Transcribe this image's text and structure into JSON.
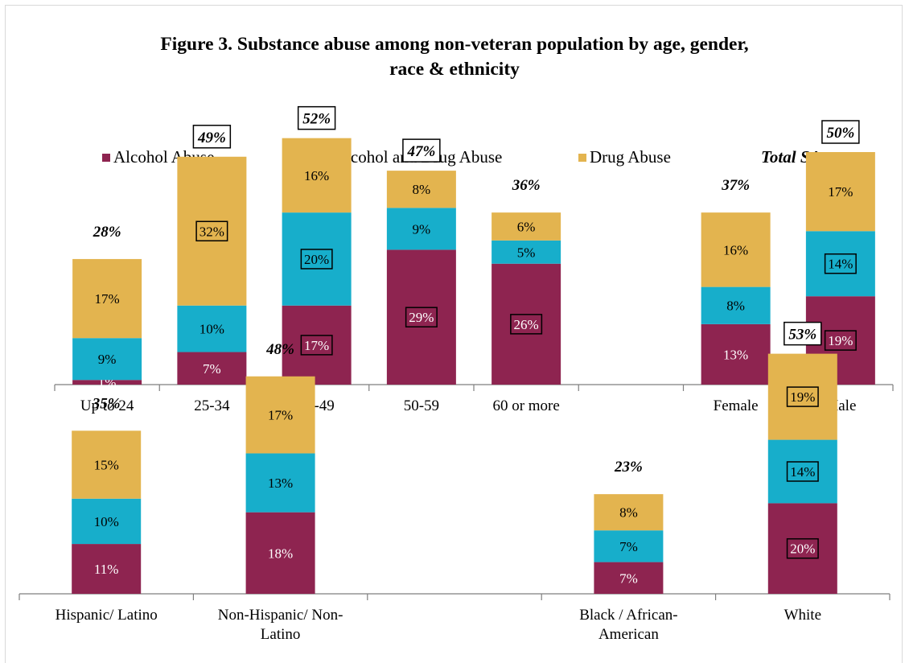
{
  "chart_title": "Figure 3. Substance abuse among non-veteran population by age, gender, race & ethnicity",
  "title_lines": [
    "Figure 3. Substance abuse among non-veteran population by age, gender,",
    "race & ethnicity"
  ],
  "legend": {
    "items": [
      {
        "label": "Alcohol Abuse",
        "color": "#8e2450"
      },
      {
        "label": "Both Alcohol and Drug Abuse",
        "color": "#17aecb"
      },
      {
        "label": "Drug Abuse",
        "color": "#e3b44f"
      }
    ],
    "total_label": "Total SA"
  },
  "colors": {
    "alcohol": "#8e2450",
    "both": "#17aecb",
    "drug": "#e3b44f",
    "axis": "#7f7f7f"
  },
  "chart_data": [
    {
      "type": "bar",
      "stacked": true,
      "title": "Figure 3. Substance abuse among non-veteran population by age, gender, race & ethnicity",
      "categories": [
        "Up to 24",
        "25-34",
        "35-49",
        "50-59",
        "60 or more",
        "",
        "Female",
        "Male"
      ],
      "series": [
        {
          "name": "Alcohol Abuse",
          "values": [
            1,
            7,
            17,
            29,
            26,
            null,
            13,
            19
          ],
          "labels": [
            "1%",
            "7%",
            "17%",
            "29%",
            "26%",
            "",
            "13%",
            "19%"
          ]
        },
        {
          "name": "Both Alcohol and Drug Abuse",
          "values": [
            9,
            10,
            20,
            9,
            5,
            null,
            8,
            14
          ],
          "labels": [
            "9%",
            "10%",
            "20%",
            "9%",
            "5%",
            "",
            "8%",
            "14%"
          ]
        },
        {
          "name": "Drug Abuse",
          "values": [
            17,
            32,
            16,
            8,
            6,
            null,
            16,
            17
          ],
          "labels": [
            "17%",
            "32%",
            "16%",
            "8%",
            "6%",
            "",
            "16%",
            "17%"
          ]
        }
      ],
      "totals": [
        28,
        49,
        52,
        47,
        36,
        null,
        37,
        50
      ],
      "total_labels": [
        "28%",
        "49%",
        "52%",
        "47%",
        "36%",
        "",
        "37%",
        "50%"
      ],
      "total_boxed": [
        false,
        true,
        true,
        true,
        false,
        false,
        false,
        true
      ],
      "boxed": {
        "Alcohol Abuse": [
          false,
          false,
          true,
          true,
          true,
          false,
          false,
          true
        ],
        "Both Alcohol and Drug Abuse": [
          false,
          false,
          true,
          false,
          false,
          false,
          false,
          true
        ],
        "Drug Abuse": [
          false,
          true,
          false,
          false,
          false,
          false,
          false,
          false
        ]
      },
      "ylim": [
        0,
        60
      ],
      "grid": false,
      "legend_position": "top"
    },
    {
      "type": "bar",
      "stacked": true,
      "categories": [
        "Hispanic/ Latino",
        "Non-Hispanic/ Non-Latino",
        "",
        "Black / African-American",
        "White"
      ],
      "category_lines": [
        [
          "Hispanic/ Latino"
        ],
        [
          "Non-Hispanic/ Non-",
          "Latino"
        ],
        [],
        [
          "Black / African-",
          "American"
        ],
        [
          "White"
        ]
      ],
      "series": [
        {
          "name": "Alcohol Abuse",
          "values": [
            11,
            18,
            null,
            7,
            20
          ],
          "labels": [
            "11%",
            "18%",
            "",
            "7%",
            "20%"
          ]
        },
        {
          "name": "Both Alcohol and Drug Abuse",
          "values": [
            10,
            13,
            null,
            7,
            14
          ],
          "labels": [
            "10%",
            "13%",
            "",
            "7%",
            "14%"
          ]
        },
        {
          "name": "Drug Abuse",
          "values": [
            15,
            17,
            null,
            8,
            19
          ],
          "labels": [
            "15%",
            "17%",
            "",
            "8%",
            "19%"
          ]
        }
      ],
      "totals": [
        35,
        48,
        null,
        23,
        53
      ],
      "total_labels": [
        "35%",
        "48%",
        "",
        "23%",
        "53%"
      ],
      "total_boxed": [
        false,
        false,
        false,
        false,
        true
      ],
      "boxed": {
        "Alcohol Abuse": [
          false,
          false,
          false,
          false,
          true
        ],
        "Both Alcohol and Drug Abuse": [
          false,
          false,
          false,
          false,
          true
        ],
        "Drug Abuse": [
          false,
          false,
          false,
          false,
          true
        ]
      },
      "ylim": [
        0,
        60
      ],
      "grid": false
    }
  ]
}
